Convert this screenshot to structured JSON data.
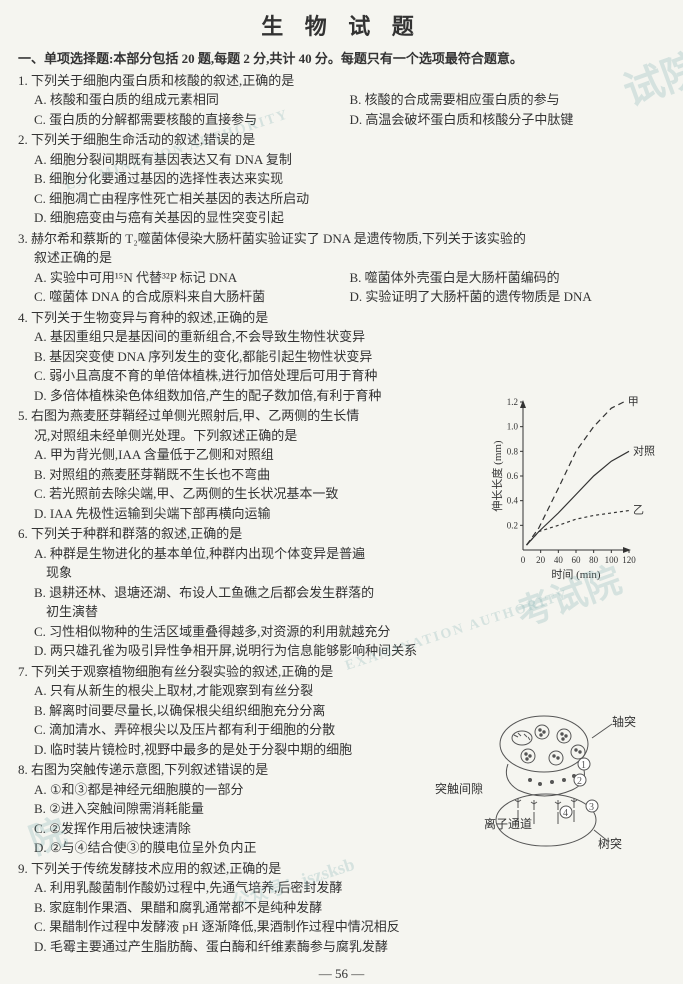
{
  "title": "生 物 试 题",
  "section_header": "一、单项选择题:本部分包括 20 题,每题 2 分,共计 40 分。每题只有一个选项最符合题意。",
  "q1": {
    "stem": "1. 下列关于细胞内蛋白质和核酸的叙述,正确的是",
    "a": "A. 核酸和蛋白质的组成元素相同",
    "b": "B. 核酸的合成需要相应蛋白质的参与",
    "c": "C. 蛋白质的分解都需要核酸的直接参与",
    "d": "D. 高温会破坏蛋白质和核酸分子中肽键"
  },
  "q2": {
    "stem": "2. 下列关于细胞生命活动的叙述,错误的是",
    "a": "A. 细胞分裂间期既有基因表达又有 DNA 复制",
    "b": "B. 细胞分化要通过基因的选择性表达来实现",
    "c": "C. 细胞凋亡由程序性死亡相关基因的表达所启动",
    "d": "D. 细胞癌变由与癌有关基因的显性突变引起"
  },
  "q3": {
    "stem": "3. 赫尔希和蔡斯的 T₂噬菌体侵染大肠杆菌实验证实了 DNA 是遗传物质,下列关于该实验的",
    "stem2": "叙述正确的是",
    "a": "A. 实验中可用¹⁵N 代替³²P 标记 DNA",
    "b": "B. 噬菌体外壳蛋白是大肠杆菌编码的",
    "c": "C. 噬菌体 DNA 的合成原料来自大肠杆菌",
    "d": "D. 实验证明了大肠杆菌的遗传物质是 DNA"
  },
  "q4": {
    "stem": "4. 下列关于生物变异与育种的叙述,正确的是",
    "a": "A. 基因重组只是基因间的重新组合,不会导致生物性状变异",
    "b": "B. 基因突变使 DNA 序列发生的变化,都能引起生物性状变异",
    "c": "C. 弱小且高度不育的单倍体植株,进行加倍处理后可用于育种",
    "d": "D. 多倍体植株染色体组数加倍,产生的配子数加倍,有利于育种"
  },
  "q5": {
    "stem": "5. 右图为燕麦胚芽鞘经过单侧光照射后,甲、乙两侧的生长情",
    "stem2": "况,对照组未经单侧光处理。下列叙述正确的是",
    "a": "A. 甲为背光侧,IAA 含量低于乙侧和对照组",
    "b": "B. 对照组的燕麦胚芽鞘既不生长也不弯曲",
    "c": "C. 若光照前去除尖端,甲、乙两侧的生长状况基本一致",
    "d": "D. IAA 先极性运输到尖端下部再横向运输"
  },
  "q6": {
    "stem": "6. 下列关于种群和群落的叙述,正确的是",
    "a": "A. 种群是生物进化的基本单位,种群内出现个体变异是普遍",
    "a2": "现象",
    "b": "B. 退耕还林、退塘还湖、布设人工鱼礁之后都会发生群落的",
    "b2": "初生演替",
    "c": "C. 习性相似物种的生活区域重叠得越多,对资源的利用就越充分",
    "d": "D. 两只雄孔雀为吸引异性争相开屏,说明行为信息能够影响种间关系"
  },
  "q7": {
    "stem": "7. 下列关于观察植物细胞有丝分裂实验的叙述,正确的是",
    "a": "A. 只有从新生的根尖上取材,才能观察到有丝分裂",
    "b": "B. 解离时间要尽量长,以确保根尖组织细胞充分分离",
    "c": "C. 滴加清水、弄碎根尖以及压片都有利于细胞的分散",
    "d": "D. 临时装片镜检时,视野中最多的是处于分裂中期的细胞"
  },
  "q8": {
    "stem": "8. 右图为突触传递示意图,下列叙述错误的是",
    "a": "A. ①和③都是神经元细胞膜的一部分",
    "b": "B. ②进入突触间隙需消耗能量",
    "c": "C. ②发挥作用后被快速清除",
    "d": "D. ②与④结合使③的膜电位呈外负内正"
  },
  "q9": {
    "stem": "9. 下列关于传统发酵技术应用的叙述,正确的是",
    "a": "A. 利用乳酸菌制作酸奶过程中,先通气培养,后密封发酵",
    "b": "B. 家庭制作果酒、果醋和腐乳通常都不是纯种发酵",
    "c": "C. 果醋制作过程中发酵液 pH 逐渐降低,果酒制作过程中情况相反",
    "d": "D. 毛霉主要通过产生脂肪酶、蛋白酶和纤维素酶参与腐乳发酵"
  },
  "page": "— 56 —",
  "chart": {
    "ylabel": "伸长长度 (mm)",
    "xlabel": "时间 (min)",
    "xlim": [
      0,
      120
    ],
    "xtick_step": 20,
    "ylim": [
      0,
      1.2
    ],
    "ytick_step": 0.2,
    "series": [
      {
        "name": "甲",
        "dash": "6,4",
        "pts": [
          [
            4,
            0.04
          ],
          [
            18,
            0.18
          ],
          [
            40,
            0.5
          ],
          [
            60,
            0.8
          ],
          [
            80,
            1.0
          ],
          [
            100,
            1.15
          ],
          [
            114,
            1.2
          ]
        ]
      },
      {
        "name": "对照",
        "dash": "0",
        "pts": [
          [
            4,
            0.04
          ],
          [
            18,
            0.15
          ],
          [
            40,
            0.3
          ],
          [
            60,
            0.45
          ],
          [
            80,
            0.6
          ],
          [
            100,
            0.72
          ],
          [
            120,
            0.8
          ]
        ]
      },
      {
        "name": "乙",
        "dash": "3,3",
        "pts": [
          [
            4,
            0.04
          ],
          [
            18,
            0.15
          ],
          [
            40,
            0.2
          ],
          [
            60,
            0.25
          ],
          [
            80,
            0.28
          ],
          [
            100,
            0.3
          ],
          [
            120,
            0.32
          ]
        ]
      }
    ]
  },
  "diagram_labels": {
    "axon": "轴突",
    "gap": "突触间隙",
    "ion": "离子通道",
    "dendrite": "树突"
  }
}
